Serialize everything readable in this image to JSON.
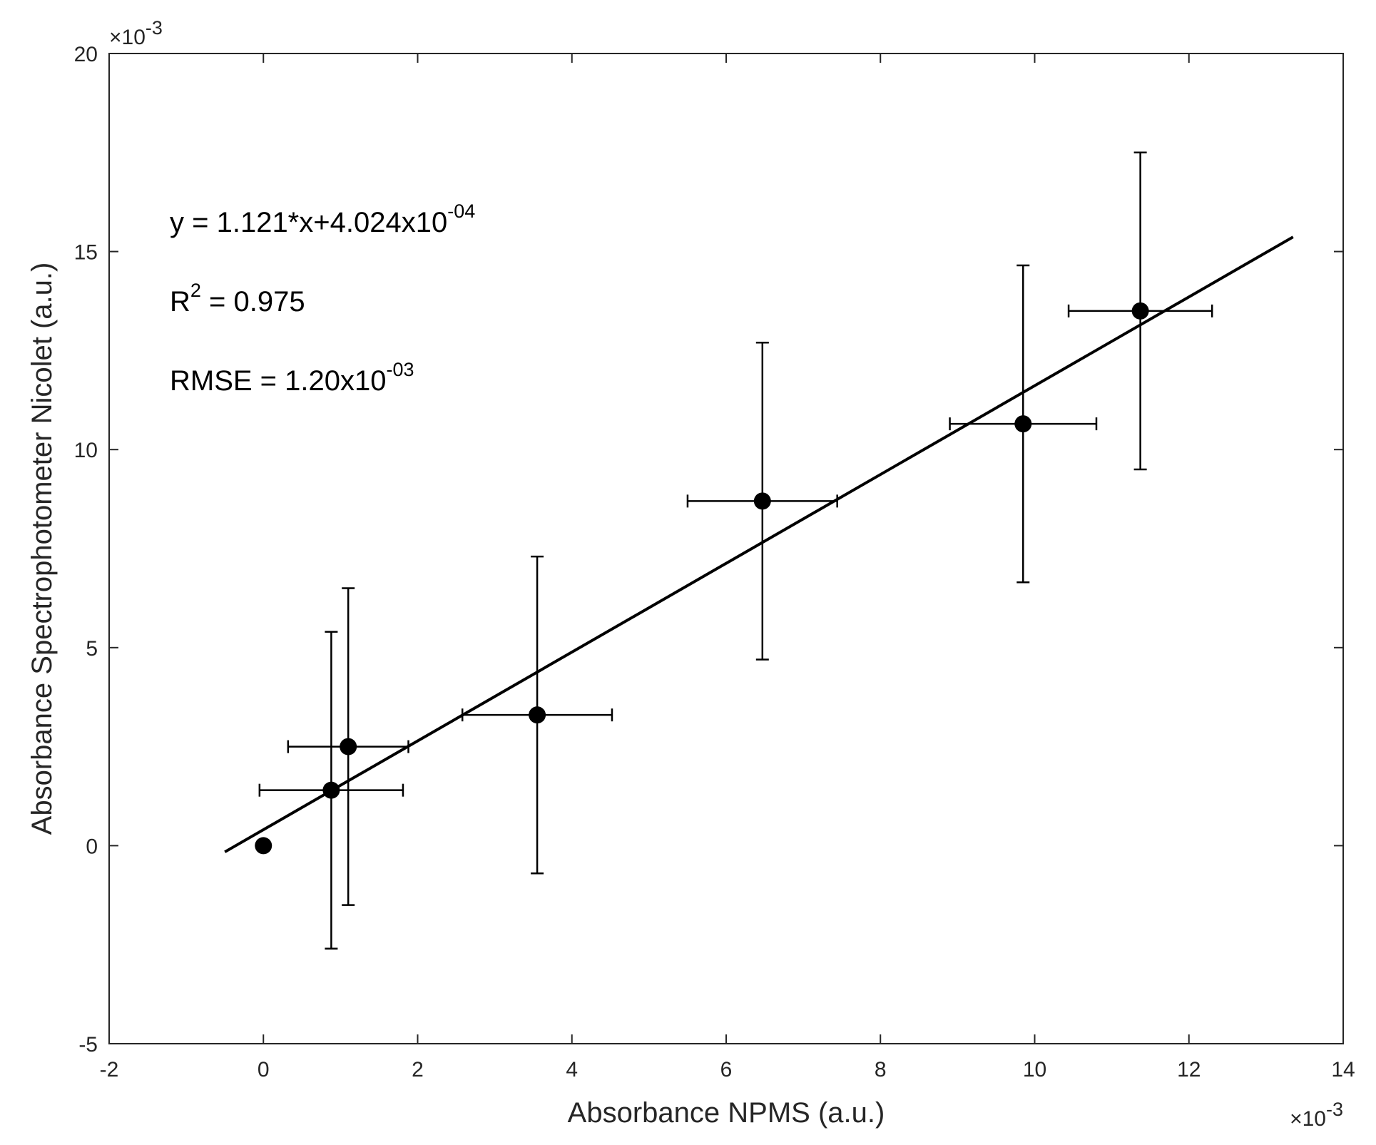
{
  "chart_data": {
    "type": "scatter",
    "xlabel": "Absorbance NPMS (a.u.)",
    "ylabel": "Absorbance Spectrophotometer Nicolet (a.u.)",
    "xlim": [
      -2,
      14
    ],
    "ylim": [
      -5,
      20
    ],
    "x_ticks": [
      -2,
      0,
      2,
      4,
      6,
      8,
      10,
      12,
      14
    ],
    "y_ticks": [
      -5,
      0,
      5,
      10,
      15,
      20
    ],
    "x_multiplier": {
      "base": "×10",
      "exp": "-3"
    },
    "y_multiplier": {
      "base": "×10",
      "exp": "-3"
    },
    "grid": false,
    "points": [
      {
        "x": 0.0,
        "y": 0.0
      },
      {
        "x": 0.88,
        "y": 1.4,
        "xerr": 0.93,
        "yerr": 4.0
      },
      {
        "x": 1.1,
        "y": 2.5,
        "xerr": 0.78,
        "yerr": 4.0
      },
      {
        "x": 3.55,
        "y": 3.3,
        "xerr": 0.97,
        "yerr": 4.0
      },
      {
        "x": 6.47,
        "y": 8.7,
        "xerr": 0.97,
        "yerr": 4.0
      },
      {
        "x": 9.85,
        "y": 10.65,
        "xerr": 0.95,
        "yerr": 4.0
      },
      {
        "x": 11.37,
        "y": 13.5,
        "xerr": 0.93,
        "yerr": 4.0
      }
    ],
    "fit": {
      "slope": 1.121,
      "intercept": 0.4024,
      "x_range": [
        -0.5,
        13.35
      ]
    },
    "annotations": {
      "equation": {
        "text": "y = 1.121*x+4.024x10",
        "exp": "-04"
      },
      "r2": {
        "base": "R",
        "exp": "2",
        "text": " = 0.975"
      },
      "rmse": {
        "text": "RMSE = 1.20x10",
        "exp": "-03"
      }
    },
    "colors": {
      "marker": "#000000",
      "line": "#000000",
      "axis": "#262626"
    }
  }
}
